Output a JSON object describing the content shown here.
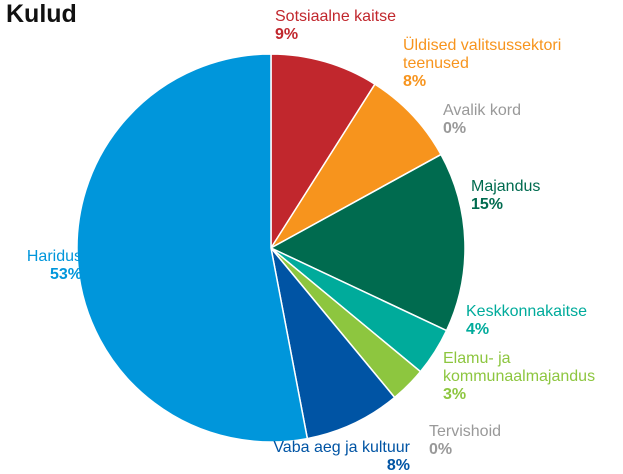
{
  "chart_data": {
    "type": "pie",
    "title": "Kulud",
    "categories": [
      "Sotsiaalne kaitse",
      "Üldised valitsussektori teenused",
      "Avalik kord",
      "Majandus",
      "Keskkonnakaitse",
      "Elamu- ja kommunaalmajandus",
      "Tervishoid",
      "Vaba aeg ja kultuur",
      "Haridus"
    ],
    "values": [
      9,
      8,
      0,
      15,
      4,
      3,
      0,
      8,
      53
    ],
    "value_labels": [
      "9%",
      "8%",
      "0%",
      "15%",
      "4%",
      "3%",
      "0%",
      "8%",
      "53%"
    ],
    "colors": [
      "#c1272d",
      "#f7941d",
      "#999999",
      "#006b4f",
      "#00ab9b",
      "#8dc63f",
      "#999999",
      "#0054a4",
      "#0096db"
    ]
  }
}
